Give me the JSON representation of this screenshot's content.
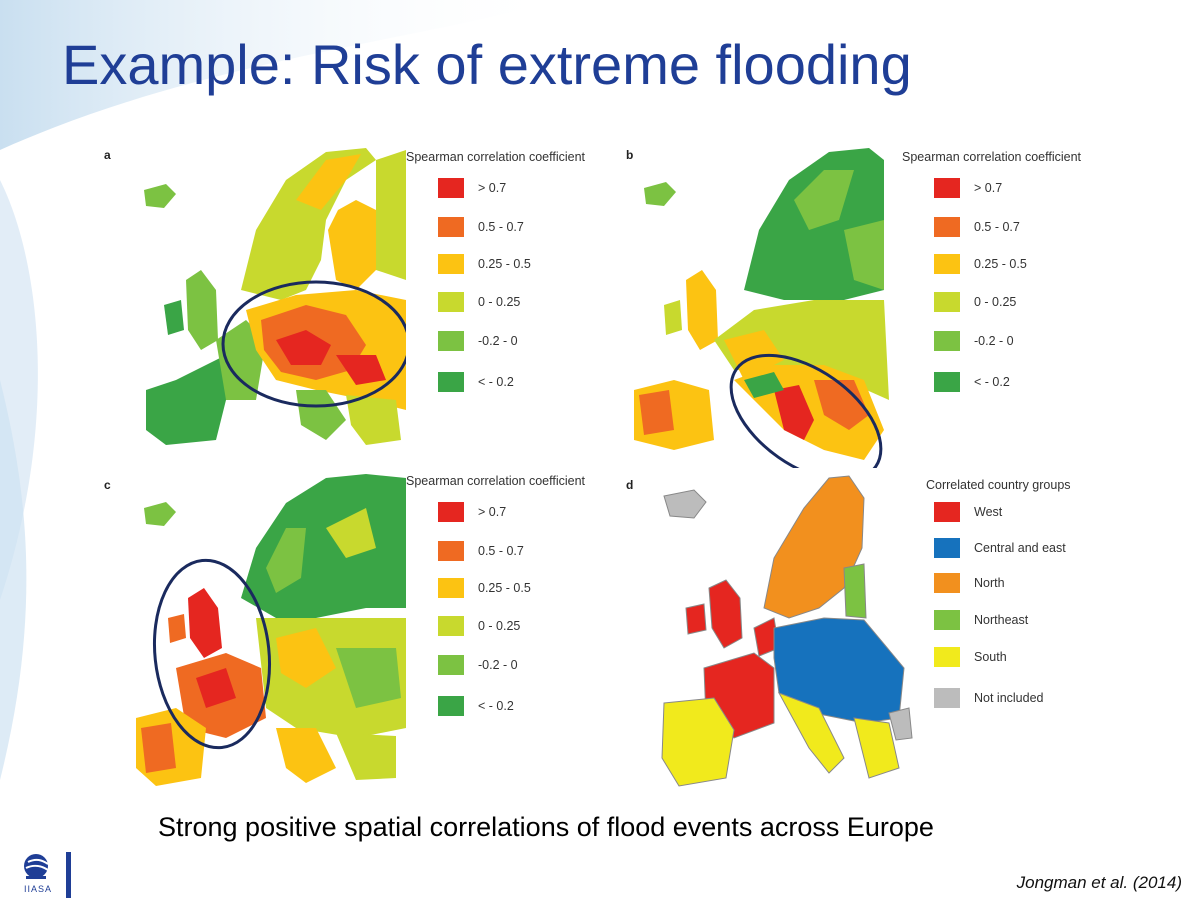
{
  "slide": {
    "title": "Example: Risk of extreme flooding",
    "caption": "Strong positive spatial correlations of flood events across Europe",
    "citation": "Jongman et al. (2014)",
    "logo_text": "IIASA"
  },
  "colors": {
    "title": "#1f3e96",
    "gt07": "#e52620",
    "c05_07": "#ef6a22",
    "c025_05": "#fcc312",
    "c0_025": "#c8d92e",
    "cm02_0": "#7cc242",
    "lt_m02": "#3aa546",
    "west": "#e52620",
    "central_east": "#1672bd",
    "north": "#f2901e",
    "northeast": "#7cc242",
    "south": "#f1ea1c",
    "not_included": "#bcbcbc",
    "ellipse": "#1a2a5e"
  },
  "panels": [
    {
      "letter": "a",
      "legend_title": "Spearman correlation coefficient",
      "legend": [
        {
          "label": "> 0.7",
          "color": "#e52620"
        },
        {
          "label": "0.5 - 0.7",
          "color": "#ef6a22"
        },
        {
          "label": "0.25 - 0.5",
          "color": "#fcc312"
        },
        {
          "label": "0 - 0.25",
          "color": "#c8d92e"
        },
        {
          "label": "-0.2 - 0",
          "color": "#7cc242"
        },
        {
          "label": "< - 0.2",
          "color": "#3aa546"
        }
      ]
    },
    {
      "letter": "b",
      "legend_title": "Spearman correlation coefficient",
      "legend": [
        {
          "label": "> 0.7",
          "color": "#e52620"
        },
        {
          "label": "0.5 - 0.7",
          "color": "#ef6a22"
        },
        {
          "label": "0.25 - 0.5",
          "color": "#fcc312"
        },
        {
          "label": "0 - 0.25",
          "color": "#c8d92e"
        },
        {
          "label": "-0.2 - 0",
          "color": "#7cc242"
        },
        {
          "label": "< - 0.2",
          "color": "#3aa546"
        }
      ]
    },
    {
      "letter": "c",
      "legend_title": "Spearman correlation coefficient",
      "legend": [
        {
          "label": "> 0.7",
          "color": "#e52620"
        },
        {
          "label": "0.5 - 0.7",
          "color": "#ef6a22"
        },
        {
          "label": "0.25 - 0.5",
          "color": "#fcc312"
        },
        {
          "label": "0 - 0.25",
          "color": "#c8d92e"
        },
        {
          "label": "-0.2 - 0",
          "color": "#7cc242"
        },
        {
          "label": "< - 0.2",
          "color": "#3aa546"
        }
      ]
    },
    {
      "letter": "d",
      "legend_title": "Correlated country groups",
      "legend": [
        {
          "label": "West",
          "color": "#e52620"
        },
        {
          "label": "Central and east",
          "color": "#1672bd"
        },
        {
          "label": "North",
          "color": "#f2901e"
        },
        {
          "label": "Northeast",
          "color": "#7cc242"
        },
        {
          "label": "South",
          "color": "#f1ea1c"
        },
        {
          "label": "Not included",
          "color": "#bcbcbc"
        }
      ]
    }
  ]
}
